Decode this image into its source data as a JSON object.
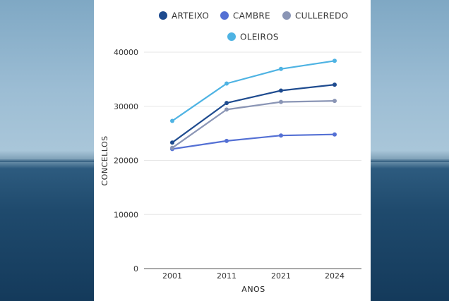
{
  "chart_data": {
    "type": "line",
    "title": "",
    "xlabel": "ANOS",
    "ylabel": "CONCELLOS",
    "categories": [
      "2001",
      "2011",
      "2021",
      "2024"
    ],
    "ylim": [
      0,
      40000
    ],
    "yticks": [
      "0",
      "10000",
      "20000",
      "30000",
      "40000"
    ],
    "grid": true,
    "legend": "top",
    "series": [
      {
        "name": "ARTEIXO",
        "color": "#1e4b8f",
        "values": [
          23300,
          30600,
          32900,
          34000
        ]
      },
      {
        "name": "CAMBRE",
        "color": "#5470d4",
        "values": [
          22100,
          23600,
          24600,
          24800
        ]
      },
      {
        "name": "CULLEREDO",
        "color": "#8a95b5",
        "values": [
          22300,
          29400,
          30800,
          31000
        ]
      },
      {
        "name": "OLEIROS",
        "color": "#4eb3e3",
        "values": [
          27300,
          34200,
          36900,
          38400
        ]
      }
    ]
  }
}
